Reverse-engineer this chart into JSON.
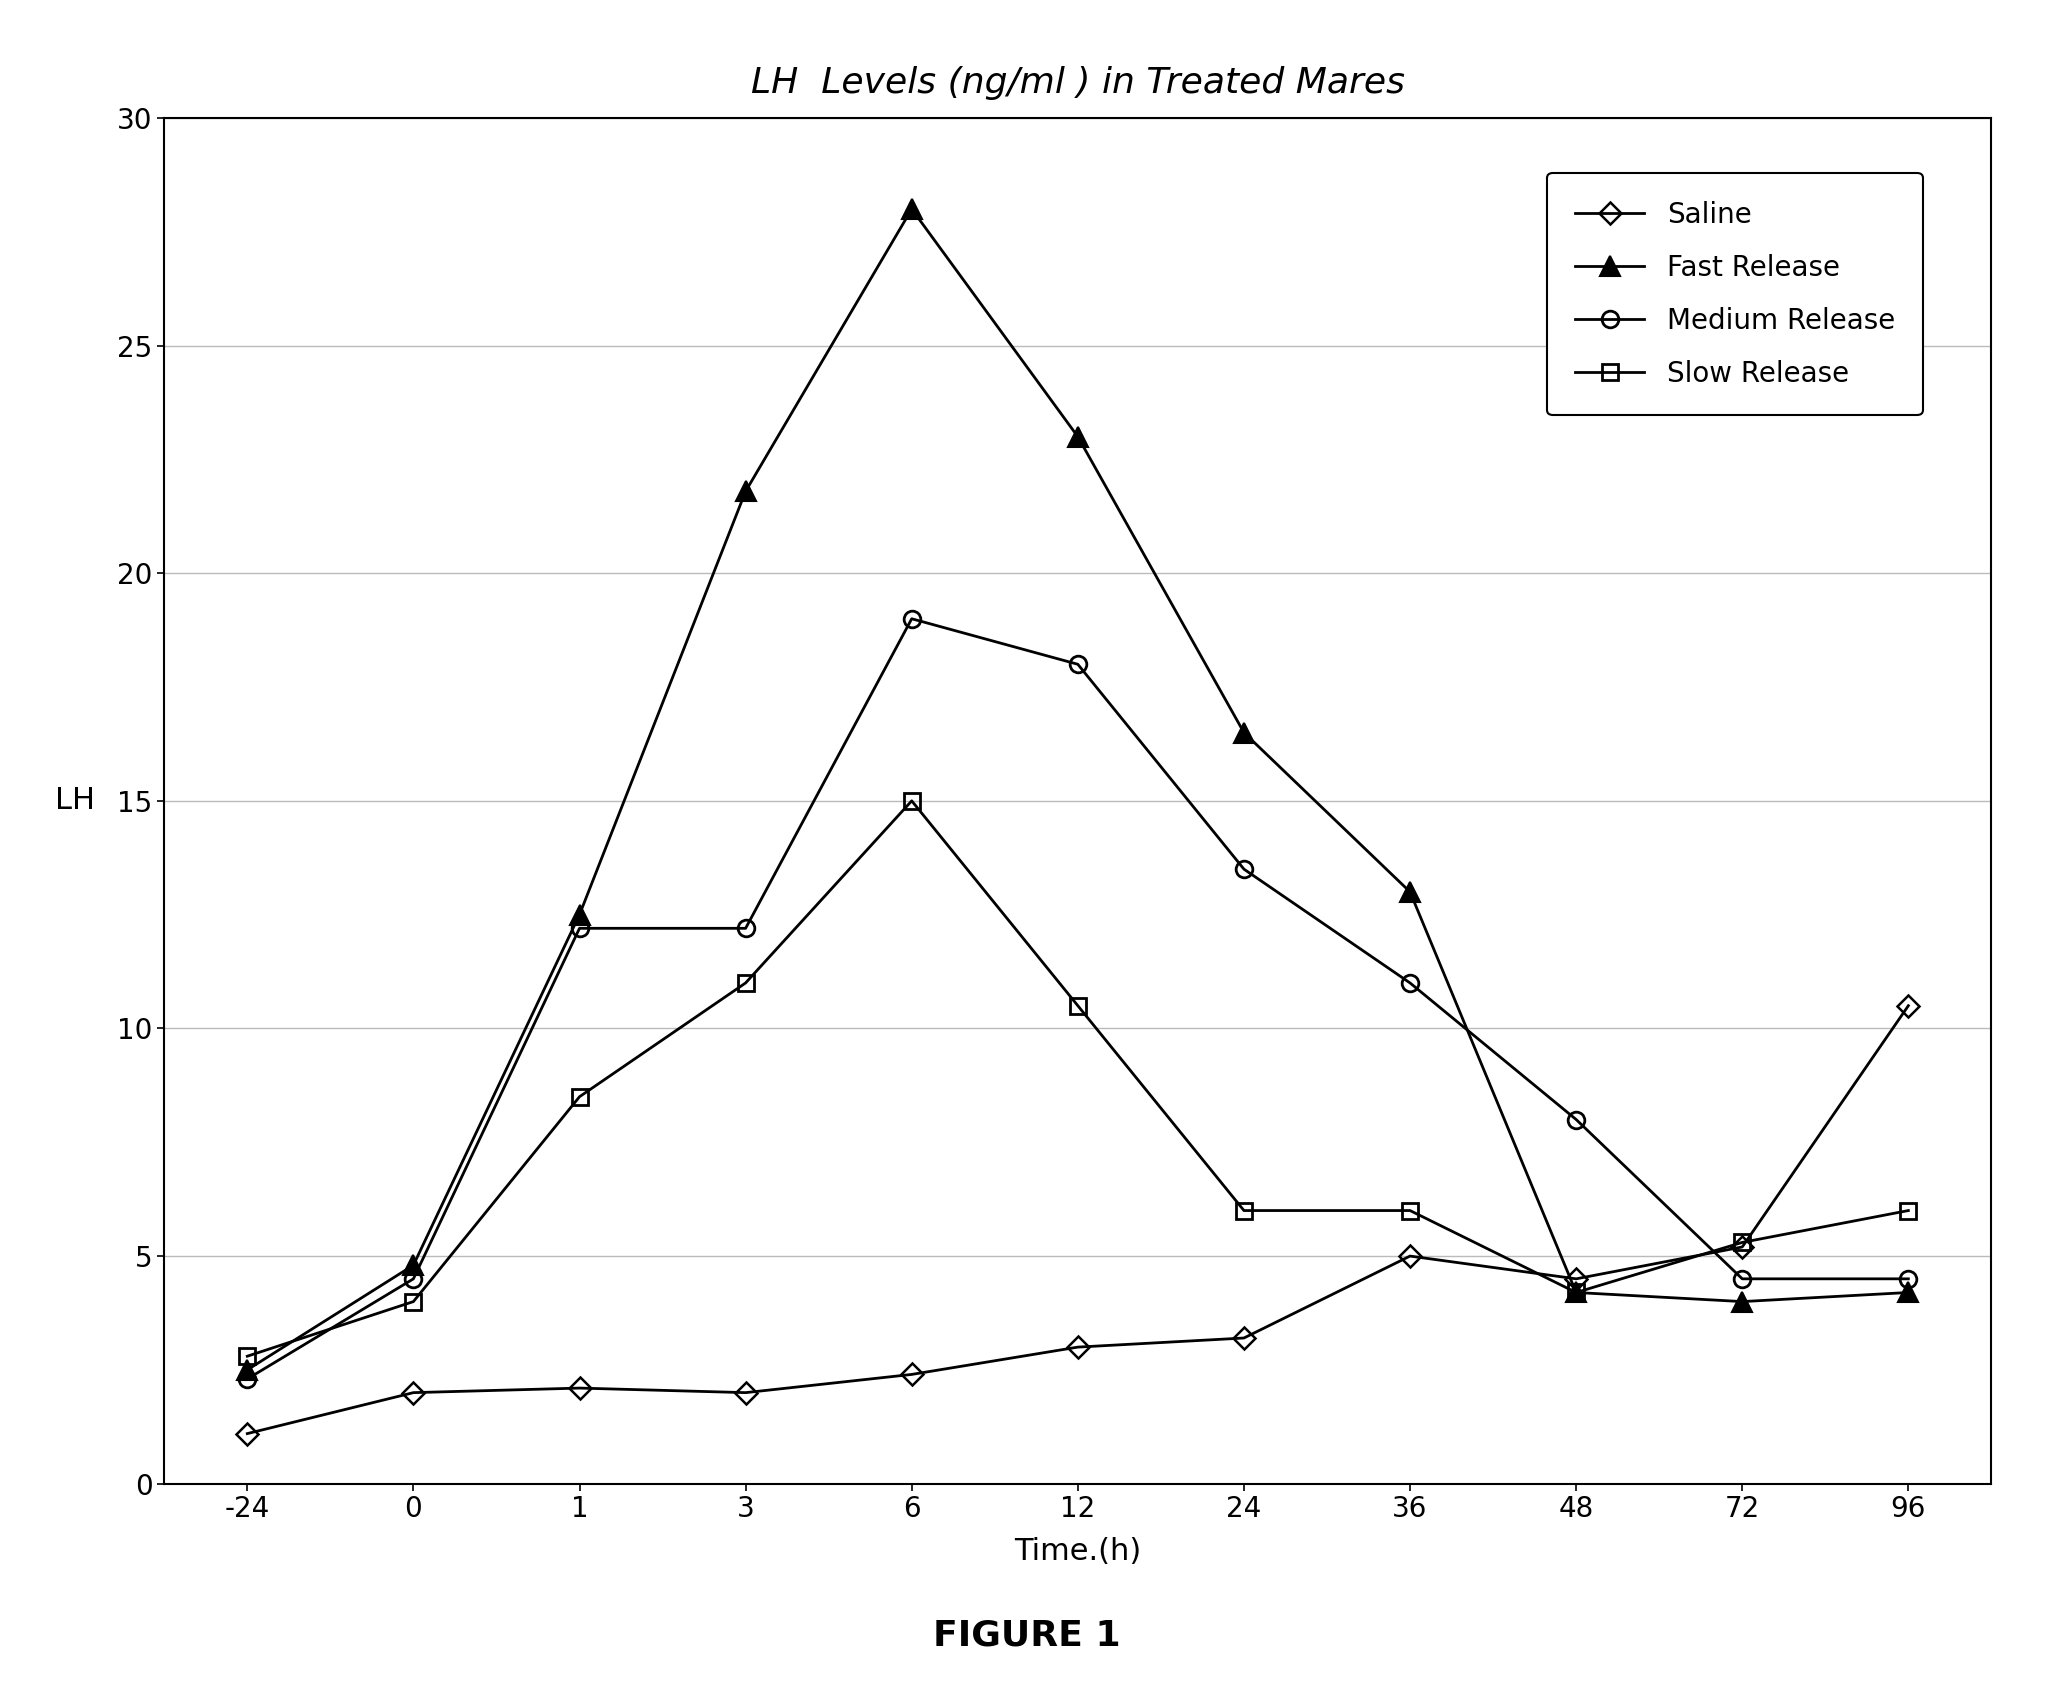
{
  "title": "LH  Levels (ng/ml ) in Treated Mares",
  "xlabel": "Time.(h)",
  "ylabel": "LH",
  "figure_label": "FIGURE 1",
  "x_tick_labels": [
    "-24",
    "0",
    "1",
    "3",
    "6",
    "12",
    "24",
    "36",
    "48",
    "72",
    "96"
  ],
  "ylim": [
    0,
    30
  ],
  "yticks": [
    0,
    5,
    10,
    15,
    20,
    25,
    30
  ],
  "series": {
    "Saline": {
      "y": [
        1.1,
        2.0,
        2.1,
        2.0,
        2.4,
        3.0,
        3.2,
        5.0,
        4.5,
        5.2,
        10.5
      ],
      "marker": "D",
      "mfc": "none",
      "mec": "#000000",
      "ms": 11,
      "mew": 1.8
    },
    "Fast Release": {
      "y": [
        2.5,
        4.8,
        12.5,
        21.8,
        28.0,
        23.0,
        16.5,
        13.0,
        4.2,
        4.0,
        4.2
      ],
      "marker": "^",
      "mfc": "#000000",
      "mec": "#000000",
      "ms": 14,
      "mew": 1.5
    },
    "Medium Release": {
      "y": [
        2.3,
        4.5,
        12.2,
        12.2,
        19.0,
        18.0,
        13.5,
        11.0,
        8.0,
        4.5,
        4.5
      ],
      "marker": "o",
      "mfc": "none",
      "mec": "#000000",
      "ms": 12,
      "mew": 2.0
    },
    "Slow Release": {
      "y": [
        2.8,
        4.0,
        8.5,
        11.0,
        15.0,
        10.5,
        6.0,
        6.0,
        4.2,
        5.3,
        6.0
      ],
      "marker": "s",
      "mfc": "none",
      "mec": "#000000",
      "ms": 12,
      "mew": 2.0
    }
  },
  "legend_order": [
    "Saline",
    "Fast Release",
    "Medium Release",
    "Slow Release"
  ],
  "background_color": "#ffffff",
  "grid_color": "#bbbbbb",
  "title_fontsize": 26,
  "axis_label_fontsize": 22,
  "tick_fontsize": 20,
  "legend_fontsize": 20,
  "figure_label_fontsize": 26
}
